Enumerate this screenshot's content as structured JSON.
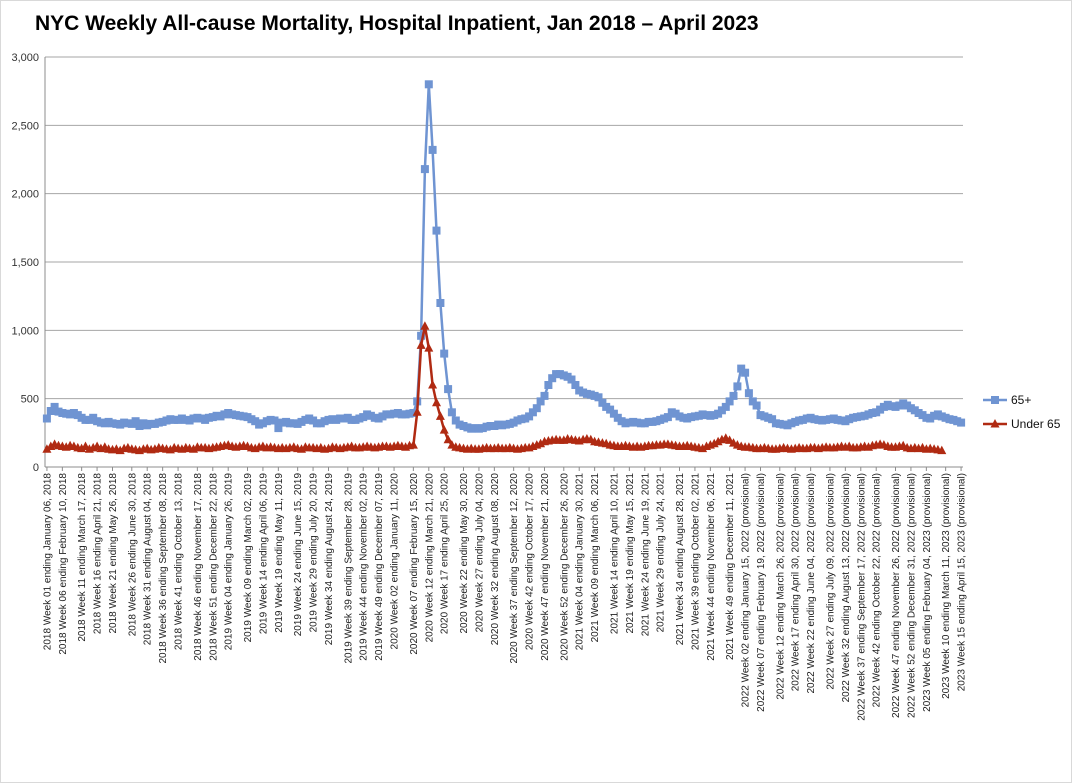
{
  "chart_data": {
    "type": "line",
    "title": "NYC Weekly All-cause Mortality, Hospital Inpatient, Jan 2018 – April 2023",
    "xlabel": "",
    "ylabel": "",
    "ylim": [
      0,
      3000
    ],
    "yticks": [
      "0",
      "500",
      "1,000",
      "1,500",
      "2,000",
      "2,500",
      "3,000"
    ],
    "grid": true,
    "legend_position": "right",
    "x_labels": [
      "2018 Week 01 ending January 06, 2018",
      "2018 Week 06 ending February 10, 2018",
      "2018 Week 11 ending March 17, 2018",
      "2018 Week 16 ending April 21, 2018",
      "2018 Week 21 ending May 26, 2018",
      "2018 Week 26 ending June 30, 2018",
      "2018 Week 31 ending August 04, 2018",
      "2018 Week 36 ending September 08, 2018",
      "2018 Week 41 ending October 13, 2018",
      "2018 Week 46 ending November 17, 2018",
      "2018 Week 51 ending December 22, 2018",
      "2019 Week 04 ending January 26, 2019",
      "2019 Week 09 ending March 02, 2019",
      "2019 Week 14 ending April 06, 2019",
      "2019 Week 19 ending May 11, 2019",
      "2019 Week 24 ending June 15, 2019",
      "2019 Week 29 ending July 20, 2019",
      "2019 Week 34 ending August 24, 2019",
      "2019 Week 39 ending September 28, 2019",
      "2019 Week 44 ending November 02, 2019",
      "2019 Week 49 ending December 07, 2019",
      "2020 Week 02 ending January 11, 2020",
      "2020 Week 07 ending February 15, 2020",
      "2020 Week 12 ending March 21, 2020",
      "2020 Week 17 ending April 25, 2020",
      "2020 Week 22 ending May 30, 2020",
      "2020 Week 27 ending July 04, 2020",
      "2020 Week 32 ending August 08, 2020",
      "2020 Week 37 ending September 12, 2020",
      "2020 Week 42 ending October 17, 2020",
      "2020 Week 47 ending November 21, 2020",
      "2020 Week 52 ending December 26, 2020",
      "2021 Week 04 ending January 30, 2021",
      "2021 Week 09 ending March 06, 2021",
      "2021 Week 14 ending April 10, 2021",
      "2021 Week 19 ending May 15, 2021",
      "2021 Week 24 ending June 19, 2021",
      "2021 Week 29 ending July 24, 2021",
      "2021 Week 34 ending August 28, 2021",
      "2021 Week 39 ending October 02, 2021",
      "2021 Week 44 ending November 06, 2021",
      "2021 Week 49 ending December 11, 2021",
      "2022 Week 02 ending January 15, 2022 (provisional)",
      "2022 Week 07 ending February 19, 2022 (provisional)",
      "2022 Week 12 ending March 26, 2022 (provisional)",
      "2022 Week 17 ending April 30, 2022 (provisional)",
      "2022 Week 22 ending June 04, 2022 (provisional)",
      "2022 Week 27 ending July 09, 2022 (provisional)",
      "2022 Week 32 ending August 13, 2022 (provisional)",
      "2022 Week 37 ending September 17, 2022 (provisional)",
      "2022 Week 42 ending October 22, 2022 (provisional)",
      "2022 Week 47 ending November 26, 2022 (provisional)",
      "2022 Week 52 ending December 31, 2022 (provisional)",
      "2023 Week 05 ending February 04, 2023 (provisional)",
      "2023 Week 10 ending March 11, 2023 (provisional)",
      "2023 Week 15 ending April 15, 2023 (provisional)"
    ],
    "series": [
      {
        "name": "65+",
        "color": "#6f94d2",
        "marker": "square",
        "values": [
          355,
          410,
          440,
          405,
          395,
          390,
          385,
          395,
          380,
          360,
          345,
          345,
          360,
          335,
          325,
          320,
          330,
          320,
          315,
          310,
          325,
          320,
          315,
          335,
          300,
          320,
          305,
          315,
          315,
          325,
          330,
          340,
          350,
          345,
          345,
          355,
          345,
          340,
          355,
          360,
          355,
          345,
          360,
          365,
          375,
          370,
          385,
          395,
          385,
          380,
          375,
          370,
          365,
          350,
          335,
          310,
          320,
          335,
          345,
          340,
          285,
          325,
          330,
          320,
          320,
          315,
          330,
          345,
          355,
          340,
          320,
          320,
          335,
          345,
          350,
          345,
          355,
          355,
          360,
          345,
          345,
          355,
          365,
          385,
          375,
          360,
          355,
          370,
          385,
          385,
          390,
          395,
          385,
          385,
          390,
          395,
          480,
          960,
          2180,
          2800,
          2320,
          1730,
          1200,
          830,
          570,
          400,
          340,
          310,
          300,
          290,
          280,
          285,
          280,
          285,
          295,
          300,
          300,
          310,
          305,
          310,
          315,
          325,
          340,
          350,
          355,
          370,
          400,
          430,
          480,
          520,
          600,
          650,
          680,
          680,
          670,
          660,
          640,
          600,
          560,
          545,
          535,
          530,
          520,
          510,
          470,
          440,
          420,
          390,
          360,
          335,
          320,
          325,
          330,
          325,
          320,
          320,
          330,
          330,
          335,
          345,
          355,
          365,
          400,
          390,
          370,
          360,
          355,
          365,
          370,
          375,
          385,
          380,
          375,
          380,
          390,
          415,
          440,
          480,
          520,
          590,
          720,
          690,
          540,
          480,
          450,
          380,
          370,
          360,
          350,
          320,
          315,
          310,
          305,
          320,
          330,
          340,
          345,
          355,
          360,
          350,
          345,
          340,
          345,
          350,
          355,
          345,
          340,
          335,
          350,
          360,
          365,
          370,
          375,
          385,
          395,
          400,
          420,
          440,
          455,
          445,
          440,
          450,
          465,
          450,
          430,
          415,
          395,
          380,
          360,
          355,
          375,
          385,
          370,
          360,
          350,
          345,
          335,
          325
        ]
      },
      {
        "name": "Under 65",
        "color": "#b02a12",
        "marker": "triangle",
        "values": [
          130,
          150,
          165,
          155,
          150,
          145,
          155,
          150,
          140,
          135,
          150,
          130,
          140,
          150,
          135,
          145,
          130,
          125,
          130,
          120,
          135,
          140,
          130,
          125,
          120,
          130,
          135,
          125,
          130,
          140,
          135,
          130,
          125,
          140,
          135,
          130,
          140,
          135,
          130,
          145,
          140,
          140,
          135,
          140,
          145,
          150,
          155,
          160,
          150,
          145,
          150,
          155,
          150,
          140,
          135,
          145,
          150,
          140,
          145,
          140,
          135,
          140,
          135,
          140,
          145,
          135,
          130,
          145,
          140,
          140,
          135,
          140,
          130,
          135,
          145,
          140,
          135,
          140,
          145,
          150,
          140,
          140,
          145,
          150,
          145,
          140,
          145,
          150,
          150,
          145,
          150,
          155,
          150,
          145,
          155,
          160,
          400,
          890,
          1030,
          870,
          600,
          470,
          370,
          270,
          200,
          160,
          145,
          140,
          135,
          130,
          135,
          130,
          130,
          135,
          140,
          135,
          135,
          140,
          135,
          135,
          140,
          135,
          130,
          135,
          140,
          140,
          150,
          160,
          170,
          185,
          190,
          195,
          200,
          195,
          195,
          205,
          200,
          195,
          190,
          200,
          205,
          200,
          185,
          180,
          175,
          170,
          160,
          155,
          150,
          150,
          155,
          150,
          145,
          150,
          145,
          150,
          155,
          155,
          160,
          160,
          165,
          165,
          160,
          155,
          150,
          150,
          155,
          150,
          145,
          140,
          135,
          150,
          160,
          170,
          185,
          200,
          210,
          195,
          175,
          160,
          150,
          145,
          145,
          140,
          135,
          135,
          140,
          135,
          130,
          130,
          135,
          140,
          135,
          130,
          135,
          140,
          135,
          135,
          140,
          140,
          135,
          140,
          145,
          140,
          140,
          145,
          150,
          145,
          150,
          140,
          140,
          145,
          150,
          145,
          155,
          160,
          165,
          160,
          150,
          145,
          145,
          150,
          155,
          140,
          135,
          140,
          135,
          140,
          130,
          135,
          130,
          125,
          120
        ]
      }
    ]
  }
}
